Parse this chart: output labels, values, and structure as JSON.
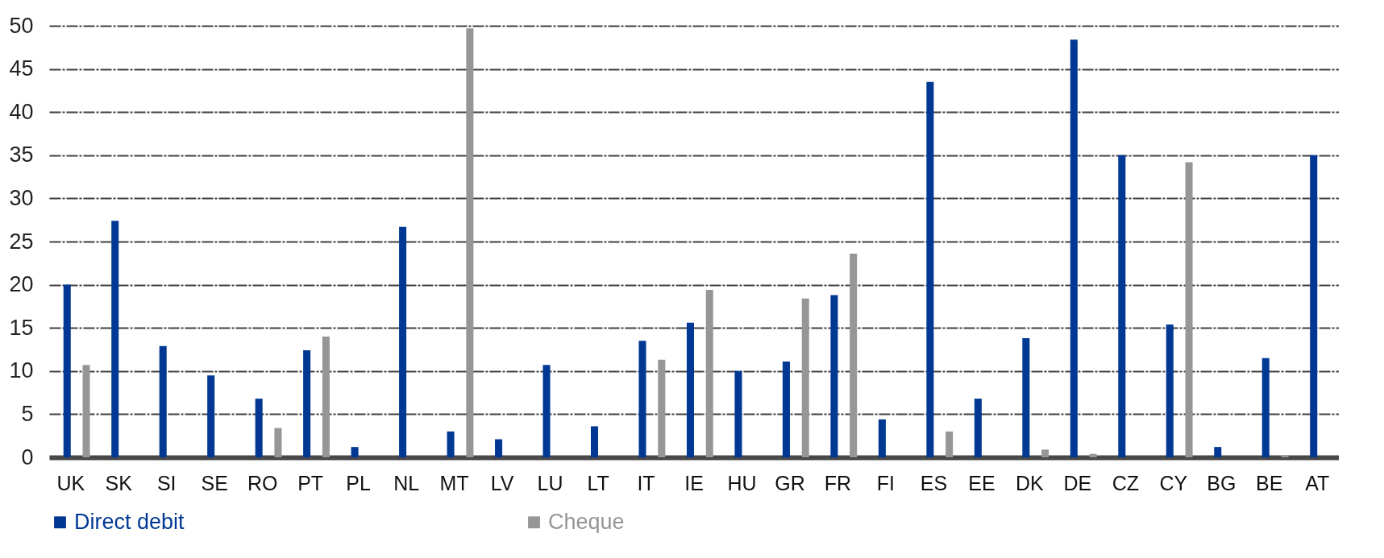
{
  "chart_data": {
    "type": "bar",
    "categories": [
      "UK",
      "SK",
      "SI",
      "SE",
      "RO",
      "PT",
      "PL",
      "NL",
      "MT",
      "LV",
      "LU",
      "LT",
      "IT",
      "IE",
      "HU",
      "GR",
      "FR",
      "FI",
      "ES",
      "EE",
      "DK",
      "DE",
      "CZ",
      "CY",
      "BG",
      "BE",
      "AT"
    ],
    "series": [
      {
        "name": "Direct debit",
        "color": "#003893",
        "values": [
          20,
          27.4,
          12.9,
          9.5,
          6.8,
          12.4,
          1.2,
          26.7,
          3.0,
          2.1,
          10.7,
          3.6,
          13.5,
          15.6,
          10.0,
          11.1,
          18.8,
          4.4,
          43.5,
          6.8,
          13.8,
          48.4,
          35.0,
          15.4,
          1.2,
          11.5,
          35.0
        ]
      },
      {
        "name": "Cheque",
        "color": "#969696",
        "values": [
          10.7,
          null,
          null,
          null,
          3.4,
          14.0,
          null,
          null,
          49.7,
          null,
          null,
          null,
          11.3,
          19.4,
          null,
          18.4,
          23.6,
          null,
          3.0,
          null,
          0.9,
          0.4,
          null,
          34.2,
          null,
          0.2,
          null
        ]
      }
    ],
    "ylim": [
      0,
      50
    ],
    "yticks": [
      0,
      5,
      10,
      15,
      20,
      25,
      30,
      35,
      40,
      45,
      50
    ],
    "grid": "y",
    "legend": "bottom"
  }
}
